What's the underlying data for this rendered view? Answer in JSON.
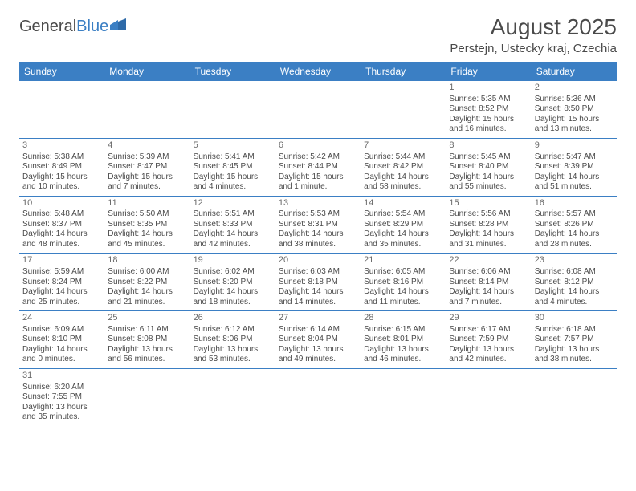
{
  "logo": {
    "text1": "General",
    "text2": "Blue"
  },
  "title": "August 2025",
  "subtitle": "Perstejn, Ustecky kraj, Czechia",
  "colors": {
    "accent": "#3b7fc4",
    "text": "#4a4a4a",
    "bg": "#ffffff"
  },
  "dayHeaders": [
    "Sunday",
    "Monday",
    "Tuesday",
    "Wednesday",
    "Thursday",
    "Friday",
    "Saturday"
  ],
  "weeks": [
    [
      {
        "empty": true
      },
      {
        "empty": true
      },
      {
        "empty": true
      },
      {
        "empty": true
      },
      {
        "empty": true
      },
      {
        "n": "1",
        "sr": "Sunrise: 5:35 AM",
        "ss": "Sunset: 8:52 PM",
        "d1": "Daylight: 15 hours",
        "d2": "and 16 minutes."
      },
      {
        "n": "2",
        "sr": "Sunrise: 5:36 AM",
        "ss": "Sunset: 8:50 PM",
        "d1": "Daylight: 15 hours",
        "d2": "and 13 minutes."
      }
    ],
    [
      {
        "n": "3",
        "sr": "Sunrise: 5:38 AM",
        "ss": "Sunset: 8:49 PM",
        "d1": "Daylight: 15 hours",
        "d2": "and 10 minutes."
      },
      {
        "n": "4",
        "sr": "Sunrise: 5:39 AM",
        "ss": "Sunset: 8:47 PM",
        "d1": "Daylight: 15 hours",
        "d2": "and 7 minutes."
      },
      {
        "n": "5",
        "sr": "Sunrise: 5:41 AM",
        "ss": "Sunset: 8:45 PM",
        "d1": "Daylight: 15 hours",
        "d2": "and 4 minutes."
      },
      {
        "n": "6",
        "sr": "Sunrise: 5:42 AM",
        "ss": "Sunset: 8:44 PM",
        "d1": "Daylight: 15 hours",
        "d2": "and 1 minute."
      },
      {
        "n": "7",
        "sr": "Sunrise: 5:44 AM",
        "ss": "Sunset: 8:42 PM",
        "d1": "Daylight: 14 hours",
        "d2": "and 58 minutes."
      },
      {
        "n": "8",
        "sr": "Sunrise: 5:45 AM",
        "ss": "Sunset: 8:40 PM",
        "d1": "Daylight: 14 hours",
        "d2": "and 55 minutes."
      },
      {
        "n": "9",
        "sr": "Sunrise: 5:47 AM",
        "ss": "Sunset: 8:39 PM",
        "d1": "Daylight: 14 hours",
        "d2": "and 51 minutes."
      }
    ],
    [
      {
        "n": "10",
        "sr": "Sunrise: 5:48 AM",
        "ss": "Sunset: 8:37 PM",
        "d1": "Daylight: 14 hours",
        "d2": "and 48 minutes."
      },
      {
        "n": "11",
        "sr": "Sunrise: 5:50 AM",
        "ss": "Sunset: 8:35 PM",
        "d1": "Daylight: 14 hours",
        "d2": "and 45 minutes."
      },
      {
        "n": "12",
        "sr": "Sunrise: 5:51 AM",
        "ss": "Sunset: 8:33 PM",
        "d1": "Daylight: 14 hours",
        "d2": "and 42 minutes."
      },
      {
        "n": "13",
        "sr": "Sunrise: 5:53 AM",
        "ss": "Sunset: 8:31 PM",
        "d1": "Daylight: 14 hours",
        "d2": "and 38 minutes."
      },
      {
        "n": "14",
        "sr": "Sunrise: 5:54 AM",
        "ss": "Sunset: 8:29 PM",
        "d1": "Daylight: 14 hours",
        "d2": "and 35 minutes."
      },
      {
        "n": "15",
        "sr": "Sunrise: 5:56 AM",
        "ss": "Sunset: 8:28 PM",
        "d1": "Daylight: 14 hours",
        "d2": "and 31 minutes."
      },
      {
        "n": "16",
        "sr": "Sunrise: 5:57 AM",
        "ss": "Sunset: 8:26 PM",
        "d1": "Daylight: 14 hours",
        "d2": "and 28 minutes."
      }
    ],
    [
      {
        "n": "17",
        "sr": "Sunrise: 5:59 AM",
        "ss": "Sunset: 8:24 PM",
        "d1": "Daylight: 14 hours",
        "d2": "and 25 minutes."
      },
      {
        "n": "18",
        "sr": "Sunrise: 6:00 AM",
        "ss": "Sunset: 8:22 PM",
        "d1": "Daylight: 14 hours",
        "d2": "and 21 minutes."
      },
      {
        "n": "19",
        "sr": "Sunrise: 6:02 AM",
        "ss": "Sunset: 8:20 PM",
        "d1": "Daylight: 14 hours",
        "d2": "and 18 minutes."
      },
      {
        "n": "20",
        "sr": "Sunrise: 6:03 AM",
        "ss": "Sunset: 8:18 PM",
        "d1": "Daylight: 14 hours",
        "d2": "and 14 minutes."
      },
      {
        "n": "21",
        "sr": "Sunrise: 6:05 AM",
        "ss": "Sunset: 8:16 PM",
        "d1": "Daylight: 14 hours",
        "d2": "and 11 minutes."
      },
      {
        "n": "22",
        "sr": "Sunrise: 6:06 AM",
        "ss": "Sunset: 8:14 PM",
        "d1": "Daylight: 14 hours",
        "d2": "and 7 minutes."
      },
      {
        "n": "23",
        "sr": "Sunrise: 6:08 AM",
        "ss": "Sunset: 8:12 PM",
        "d1": "Daylight: 14 hours",
        "d2": "and 4 minutes."
      }
    ],
    [
      {
        "n": "24",
        "sr": "Sunrise: 6:09 AM",
        "ss": "Sunset: 8:10 PM",
        "d1": "Daylight: 14 hours",
        "d2": "and 0 minutes."
      },
      {
        "n": "25",
        "sr": "Sunrise: 6:11 AM",
        "ss": "Sunset: 8:08 PM",
        "d1": "Daylight: 13 hours",
        "d2": "and 56 minutes."
      },
      {
        "n": "26",
        "sr": "Sunrise: 6:12 AM",
        "ss": "Sunset: 8:06 PM",
        "d1": "Daylight: 13 hours",
        "d2": "and 53 minutes."
      },
      {
        "n": "27",
        "sr": "Sunrise: 6:14 AM",
        "ss": "Sunset: 8:04 PM",
        "d1": "Daylight: 13 hours",
        "d2": "and 49 minutes."
      },
      {
        "n": "28",
        "sr": "Sunrise: 6:15 AM",
        "ss": "Sunset: 8:01 PM",
        "d1": "Daylight: 13 hours",
        "d2": "and 46 minutes."
      },
      {
        "n": "29",
        "sr": "Sunrise: 6:17 AM",
        "ss": "Sunset: 7:59 PM",
        "d1": "Daylight: 13 hours",
        "d2": "and 42 minutes."
      },
      {
        "n": "30",
        "sr": "Sunrise: 6:18 AM",
        "ss": "Sunset: 7:57 PM",
        "d1": "Daylight: 13 hours",
        "d2": "and 38 minutes."
      }
    ],
    [
      {
        "n": "31",
        "sr": "Sunrise: 6:20 AM",
        "ss": "Sunset: 7:55 PM",
        "d1": "Daylight: 13 hours",
        "d2": "and 35 minutes."
      },
      {
        "empty": true
      },
      {
        "empty": true
      },
      {
        "empty": true
      },
      {
        "empty": true
      },
      {
        "empty": true
      },
      {
        "empty": true
      }
    ]
  ]
}
